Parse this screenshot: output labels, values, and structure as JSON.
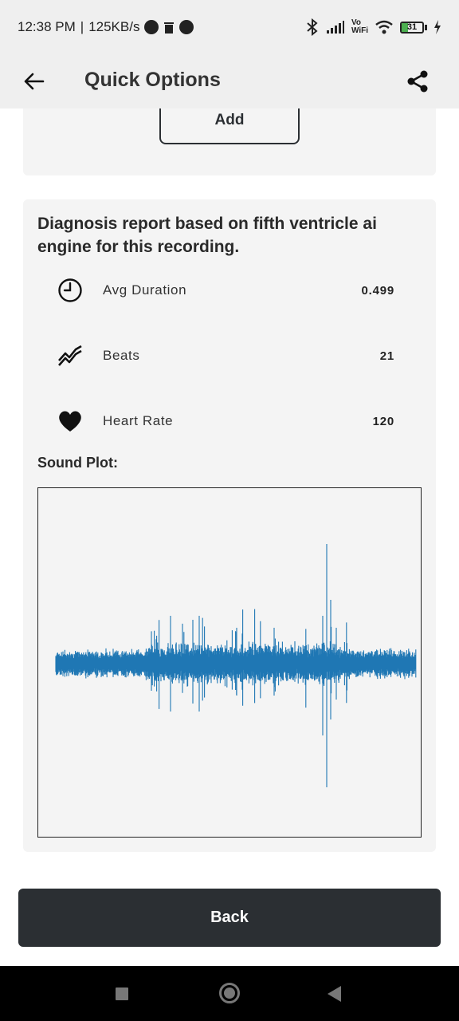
{
  "status_bar": {
    "time": "12:38 PM",
    "separator": "|",
    "speed": "125KB/s",
    "network_label_top": "Vo",
    "network_label_bottom": "WiFi",
    "battery_level": "31",
    "icons": [
      "circle-p-icon",
      "trash-icon",
      "circle-p-icon",
      "bluetooth-icon",
      "signal-icon",
      "vowifi-icon",
      "wifi-icon",
      "battery-icon",
      "charging-icon"
    ]
  },
  "appbar": {
    "title": "Quick Options",
    "back_icon": "arrow-left-icon",
    "share_icon": "share-icon"
  },
  "top_card": {
    "add_label": "Add"
  },
  "report": {
    "heading": "Diagnosis report based on fifth ventricle ai engine for this recording.",
    "metrics": [
      {
        "icon": "clock-icon",
        "label": "Avg Duration",
        "value": "0.499"
      },
      {
        "icon": "trend-icon",
        "label": "Beats",
        "value": "21"
      },
      {
        "icon": "heart-icon",
        "label": "Heart Rate",
        "value": "120"
      }
    ],
    "sound_plot_title": "Sound Plot:",
    "waveform_color": "#1f77b4"
  },
  "back_button": {
    "label": "Back"
  },
  "colors": {
    "appbar_bg": "#efefef",
    "card_bg": "#f4f4f4",
    "primary_dark": "#2b2f33",
    "navbar_bg": "#000000"
  }
}
